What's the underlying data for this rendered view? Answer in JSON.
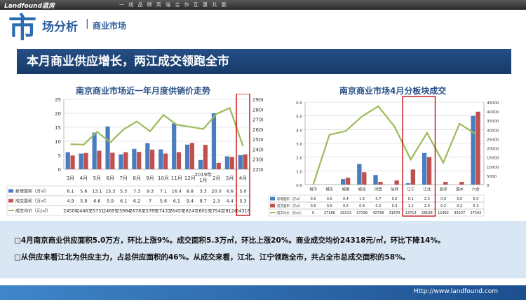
{
  "header": {
    "logo": "Landfound蓝房",
    "slogan": "一 线 品 牌  高 端 合 作  互 惠 共 赢",
    "section_char": "市",
    "section_title": "场分析",
    "section_sep": "|",
    "section_sub": "商业市场"
  },
  "headline": "本月商业供应增长，两江成交领跑全市",
  "notes": [
    "□4月南京商业供应面积5.0万方，环比上涨9%。成交面积5.3万㎡，环比上涨20%。商业成交均价24318元/㎡，环比下降14%。",
    "□从供应来看江北为供应主力，占总供应面积的46%。从成交来看，江北、江宁领跑全市，共占全市总成交面积的58%。"
  ],
  "footer_url": "Http://www.landfound.com",
  "colors": {
    "supply": "#4a7dc0",
    "deal": "#c0504d",
    "price": "#9bbb59",
    "highlight": "#c00000"
  },
  "chart_data": [
    {
      "type": "bar",
      "title": "南京商业市场近一年月度供销价走势",
      "categories": [
        "3月",
        "4月",
        "5月",
        "6月",
        "7月",
        "8月",
        "9月",
        "10月",
        "11月",
        "12月",
        "2019年1月",
        "2月",
        "3月",
        "4月"
      ],
      "ylim": [
        0,
        25
      ],
      "y2lim": [
        22000,
        29000
      ],
      "yticks": [
        "0",
        "5",
        "10",
        "15",
        "20",
        "25"
      ],
      "y2ticks": [
        "22000",
        "23000",
        "24000",
        "25000",
        "26000",
        "27000",
        "28000",
        "29000"
      ],
      "series": [
        {
          "name": "新增面积（万㎡）",
          "type": "bar",
          "values": [
            6.1,
            5.6,
            13.1,
            15.3,
            5.3,
            7.3,
            9.3,
            7.1,
            16.4,
            8.8,
            3.3,
            20.0,
            4.6,
            5.0
          ],
          "labels": [
            "6.1",
            "5.6",
            "13.1",
            "15.3",
            "5.3",
            "7.3",
            "9.3",
            "7.1",
            "16.4",
            "8.8",
            "3.3",
            "20.0",
            "4.6",
            "5.0"
          ]
        },
        {
          "name": "成交面积（万㎡）",
          "type": "bar",
          "values": [
            4.9,
            5.8,
            6.6,
            5.9,
            6.1,
            6.2,
            7,
            5.6,
            6.1,
            9.4,
            8.7,
            2.3,
            4.4,
            5.3
          ],
          "labels": [
            "4.9",
            "5.8",
            "6.6",
            "5.9",
            "6.1",
            "6.2",
            "7",
            "5.6",
            "6.1",
            "9.4",
            "8.7",
            "2.3",
            "4.4",
            "5.3"
          ]
        },
        {
          "name": "成交均价（元/㎡）",
          "type": "line",
          "axis": "right",
          "values": [
            24500,
            24463,
            25751,
            24695,
            25984,
            26783,
            25789,
            27433,
            26459,
            26247,
            26019,
            27542,
            28124,
            24318
          ],
          "labels": [
            "24500",
            "24463",
            "25751",
            "24695",
            "25984",
            "26783",
            "25789",
            "27433",
            "26459",
            "26247",
            "26019",
            "27542",
            "28124",
            "24318"
          ]
        }
      ]
    },
    {
      "type": "bar",
      "title": "南京商业市场4月分板块成交",
      "categories": [
        "城中",
        "城东",
        "城南",
        "城北",
        "河西",
        "仙林",
        "江宁",
        "江北",
        "高淳",
        "溧水",
        "六合"
      ],
      "ylim": [
        0,
        6
      ],
      "y2lim": [
        0,
        45000
      ],
      "yticks": [
        "0.0",
        "1.0",
        "2.0",
        "3.0",
        "4.0",
        "5.0",
        "6.0"
      ],
      "y2ticks": [
        "0",
        "5000",
        "10000",
        "15000",
        "20000",
        "25000",
        "30000",
        "35000",
        "40000",
        "45000"
      ],
      "series": [
        {
          "name": "新增面积（万㎡）",
          "type": "bar",
          "values": [
            0,
            0,
            0.4,
            1.5,
            0.7,
            0,
            0.1,
            2.3,
            0,
            0,
            5.0
          ],
          "labels": [
            "0.0",
            "0.0",
            "0.4",
            "1.5",
            "0.7",
            "0.0",
            "0.1",
            "2.3",
            "0.0",
            "0.0",
            "5.0"
          ]
        },
        {
          "name": "成交面积（万㎡）",
          "type": "bar",
          "values": [
            0,
            0,
            0.5,
            0.9,
            0.2,
            0.3,
            1.1,
            2.0,
            0.2,
            0.2,
            5.3
          ],
          "labels": [
            "0.0",
            "0.0",
            "0.5",
            "0.9",
            "0.2",
            "0.3",
            "1.1",
            "2.0",
            "0.2",
            "0.2",
            "5.3"
          ]
        },
        {
          "name": "成交均价（元/㎡）",
          "type": "line",
          "axis": "right",
          "values": [
            0,
            27186,
            29213,
            37199,
            42748,
            31670,
            13713,
            28198,
            11992,
            33237,
            27542
          ],
          "labels": [
            "0",
            "27186",
            "29213",
            "37199",
            "42748",
            "31670",
            "13713",
            "28198",
            "11992",
            "33237",
            "27542"
          ]
        }
      ]
    }
  ]
}
